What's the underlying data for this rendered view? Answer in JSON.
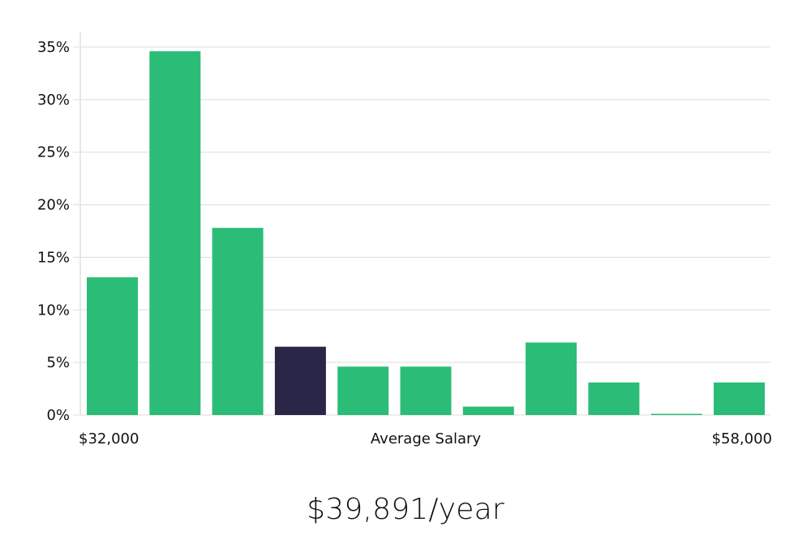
{
  "headline": "$39,891/year",
  "chart_data": {
    "type": "bar",
    "title": "",
    "xlabel": "Average Salary",
    "ylabel": "",
    "x_range_labels": [
      "$32,000",
      "$58,000"
    ],
    "ylim": [
      0,
      35
    ],
    "ytick_values": [
      0,
      5,
      10,
      15,
      20,
      25,
      30,
      35
    ],
    "ytick_labels": [
      "0%",
      "5%",
      "10%",
      "15%",
      "20%",
      "25%",
      "30%",
      "35%"
    ],
    "values": [
      13.1,
      34.6,
      17.8,
      6.5,
      4.6,
      4.6,
      0.8,
      6.9,
      3.1,
      0.1,
      3.1
    ],
    "highlight_index": 3,
    "grid": true,
    "legend": "none"
  },
  "colors": {
    "bar": "#2bbd77",
    "highlight": "#2a2647",
    "grid": "#dddddd",
    "text": "#111111"
  }
}
